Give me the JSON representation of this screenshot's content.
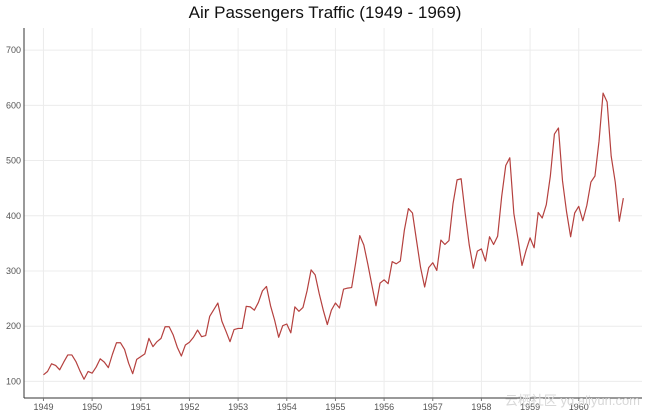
{
  "chart_data": {
    "type": "line",
    "title": "Air Passengers Traffic (1949 - 1969)",
    "xlabel": "",
    "ylabel": "",
    "x_start_year": 1949,
    "x_ticks": [
      "1949",
      "1950",
      "1951",
      "1952",
      "1953",
      "1954",
      "1955",
      "1956",
      "1957",
      "1958",
      "1959",
      "1960"
    ],
    "y_ticks": [
      100,
      200,
      300,
      400,
      500,
      600,
      700
    ],
    "ylim": [
      70,
      740
    ],
    "xlim": [
      1948.6,
      1961.3
    ],
    "grid": true,
    "series": [
      {
        "color": "#b5413f",
        "values": [
          112,
          118,
          132,
          129,
          121,
          135,
          148,
          148,
          136,
          119,
          104,
          118,
          115,
          126,
          141,
          135,
          125,
          149,
          170,
          170,
          158,
          133,
          114,
          140,
          145,
          150,
          178,
          163,
          172,
          178,
          199,
          199,
          184,
          162,
          146,
          166,
          171,
          180,
          193,
          181,
          183,
          218,
          230,
          242,
          209,
          191,
          172,
          194,
          196,
          196,
          236,
          235,
          229,
          243,
          264,
          272,
          237,
          211,
          180,
          201,
          204,
          188,
          235,
          227,
          234,
          264,
          302,
          293,
          259,
          229,
          203,
          229,
          242,
          233,
          267,
          269,
          270,
          315,
          364,
          347,
          312,
          274,
          237,
          278,
          284,
          277,
          317,
          313,
          318,
          374,
          413,
          405,
          355,
          306,
          271,
          306,
          315,
          301,
          356,
          348,
          355,
          422,
          465,
          467,
          404,
          347,
          305,
          336,
          340,
          318,
          362,
          348,
          363,
          435,
          491,
          505,
          404,
          359,
          310,
          337,
          360,
          342,
          406,
          396,
          420,
          472,
          548,
          559,
          463,
          407,
          362,
          405,
          417,
          391,
          419,
          461,
          472,
          535,
          622,
          606,
          508,
          461,
          390,
          432
        ]
      }
    ]
  },
  "watermark": {
    "text": "云栖社区 yq.aliyun.com"
  }
}
